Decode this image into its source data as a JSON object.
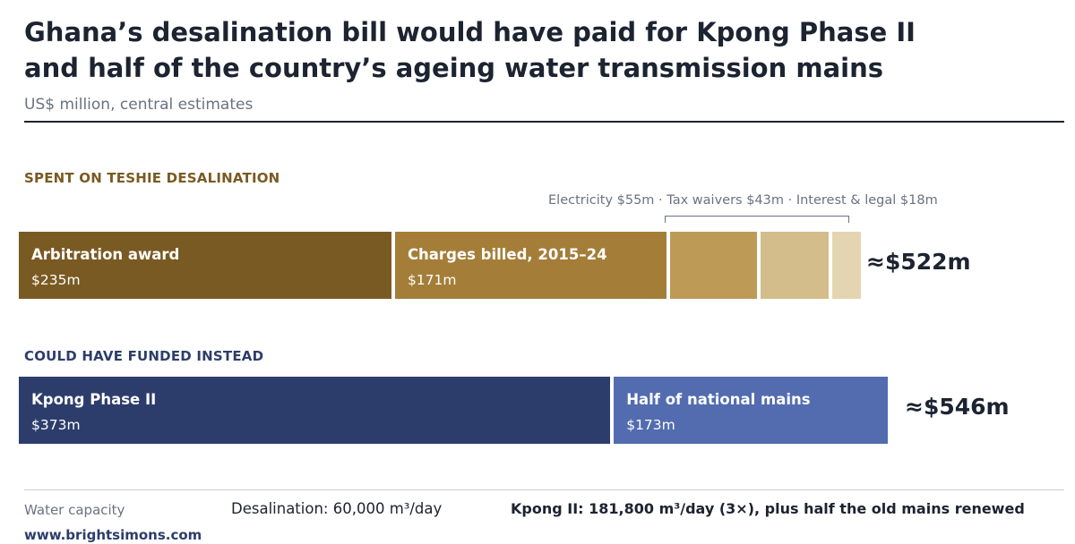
{
  "header": {
    "title_line1": "Ghana’s desalination bill would have paid for Kpong Phase II",
    "title_line2": "and half of the country’s ageing water transmission mains",
    "subtitle": "US$ million, central estimates"
  },
  "chart_data": {
    "type": "bar",
    "orientation": "horizontal-stacked",
    "unit": "US$ million",
    "bars": [
      {
        "label": "SPENT ON TESHIE DESALINATION",
        "label_color": "#7a5a23",
        "total_label": "≈$522m",
        "annotation": "Electricity $55m  ·  Tax waivers $43m  ·  Interest & legal $18m",
        "segments": [
          {
            "name": "Arbitration award",
            "value": 235,
            "value_label": "$235m",
            "color": "#7a5a23"
          },
          {
            "name": "Charges billed, 2015–24",
            "value": 171,
            "value_label": "$171m",
            "color": "#a47e38"
          },
          {
            "name": "",
            "value": 55,
            "value_label": "",
            "color": "#bd9b57"
          },
          {
            "name": "",
            "value": 43,
            "value_label": "",
            "color": "#d3bd8a"
          },
          {
            "name": "",
            "value": 18,
            "value_label": "",
            "color": "#e3d5b1"
          }
        ]
      },
      {
        "label": "COULD HAVE FUNDED INSTEAD",
        "label_color": "#2d3d6b",
        "total_label": "≈$546m",
        "segments": [
          {
            "name": "Kpong Phase II",
            "value": 373,
            "value_label": "$373m",
            "color": "#2d3d6b"
          },
          {
            "name": "Half of national mains",
            "value": 173,
            "value_label": "$173m",
            "color": "#526caf"
          }
        ]
      }
    ]
  },
  "footer": {
    "capacity_label": "Water capacity",
    "desalination": "Desalination: 60,000 m³/day",
    "kpong": "Kpong II: 181,800 m³/day (3×), plus half the old mains renewed",
    "source": "www.brightsimons.com"
  }
}
